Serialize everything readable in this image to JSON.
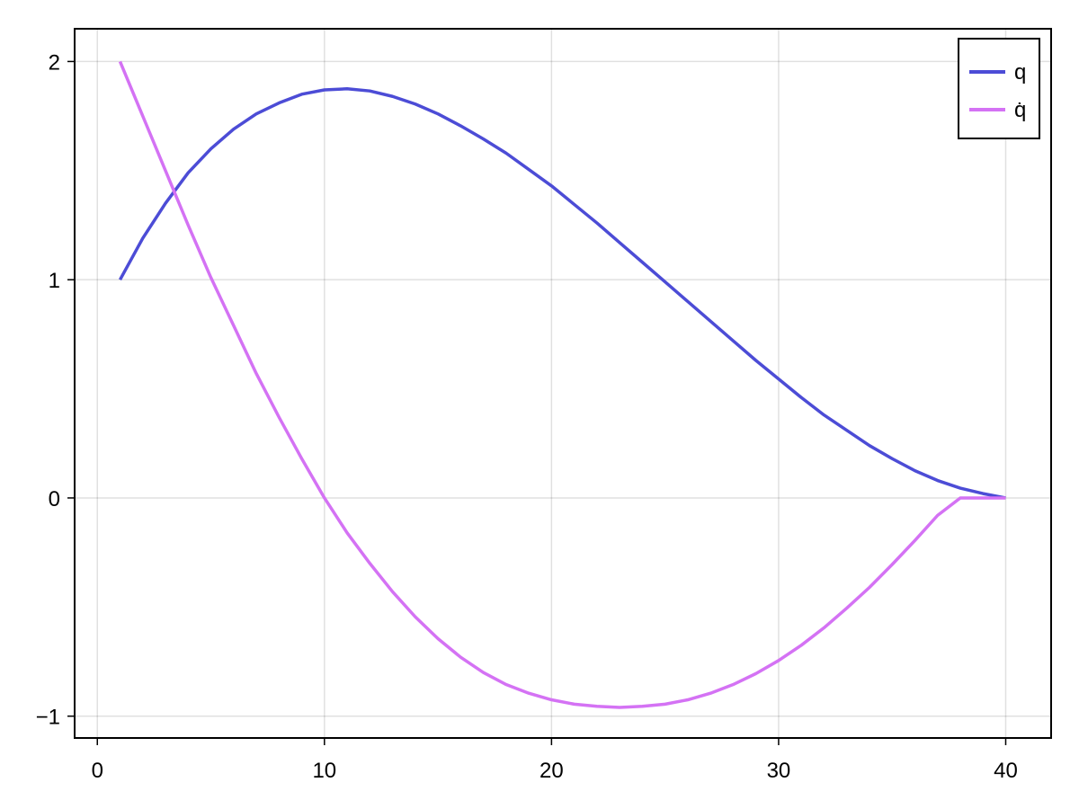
{
  "chart_data": {
    "type": "line",
    "title": "",
    "xlabel": "",
    "ylabel": "",
    "xlim": [
      -1,
      42
    ],
    "ylim": [
      -1.1,
      2.15
    ],
    "xticks": [
      0,
      10,
      20,
      30,
      40
    ],
    "yticks": [
      -1,
      0,
      1,
      2
    ],
    "xtick_labels": [
      "0",
      "10",
      "20",
      "30",
      "40"
    ],
    "ytick_labels": [
      "−1",
      "0",
      "1",
      "2"
    ],
    "grid": true,
    "legend_position": "top-right",
    "series": [
      {
        "name": "q",
        "color": "#4c4cd6",
        "x": [
          1,
          2,
          3,
          4,
          5,
          6,
          7,
          8,
          9,
          10,
          11,
          12,
          13,
          14,
          15,
          16,
          17,
          18,
          19,
          20,
          21,
          22,
          23,
          24,
          25,
          26,
          27,
          28,
          29,
          30,
          31,
          32,
          33,
          34,
          35,
          36,
          37,
          38,
          39,
          40
        ],
        "y": [
          1.0,
          1.19,
          1.35,
          1.49,
          1.6,
          1.69,
          1.76,
          1.81,
          1.85,
          1.87,
          1.875,
          1.865,
          1.84,
          1.805,
          1.76,
          1.705,
          1.645,
          1.58,
          1.505,
          1.43,
          1.345,
          1.26,
          1.17,
          1.08,
          0.99,
          0.9,
          0.81,
          0.72,
          0.63,
          0.545,
          0.46,
          0.38,
          0.31,
          0.24,
          0.18,
          0.125,
          0.08,
          0.045,
          0.02,
          0.0
        ]
      },
      {
        "name": "q̇",
        "color": "#d472f4",
        "x": [
          1,
          2,
          3,
          4,
          5,
          6,
          7,
          8,
          9,
          10,
          11,
          12,
          13,
          14,
          15,
          16,
          17,
          18,
          19,
          20,
          21,
          22,
          23,
          24,
          25,
          26,
          27,
          28,
          29,
          30,
          31,
          32,
          33,
          34,
          35,
          36,
          37,
          38,
          39,
          40
        ],
        "y": [
          2.0,
          1.75,
          1.5,
          1.25,
          1.01,
          0.79,
          0.57,
          0.37,
          0.18,
          0.0,
          -0.16,
          -0.3,
          -0.43,
          -0.545,
          -0.645,
          -0.73,
          -0.8,
          -0.855,
          -0.895,
          -0.925,
          -0.945,
          -0.955,
          -0.96,
          -0.955,
          -0.945,
          -0.925,
          -0.895,
          -0.855,
          -0.805,
          -0.745,
          -0.675,
          -0.595,
          -0.505,
          -0.41,
          -0.305,
          -0.195,
          -0.08,
          0.0,
          0.0,
          0.0
        ]
      }
    ]
  }
}
